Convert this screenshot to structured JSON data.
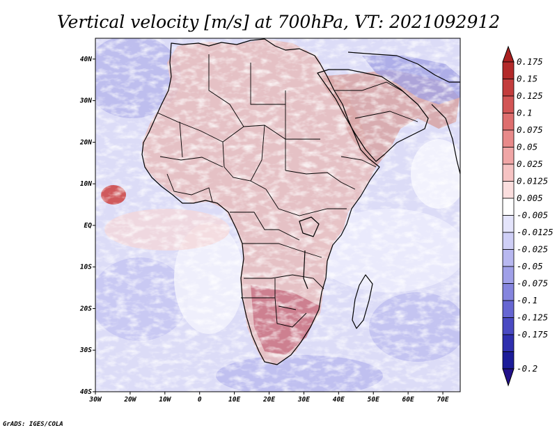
{
  "map": {
    "title": "Vertical velocity [m/s] at 700hPa, VT: 2021092912",
    "credit": "GrADS: IGES/COLA",
    "extent": {
      "lon_min": -30,
      "lon_max": 75,
      "lat_min": -40,
      "lat_max": 45
    },
    "lat_ticks": [
      {
        "lat": 40,
        "label": "40N"
      },
      {
        "lat": 30,
        "label": "30N"
      },
      {
        "lat": 20,
        "label": "20N"
      },
      {
        "lat": 10,
        "label": "10N"
      },
      {
        "lat": 0,
        "label": "EQ"
      },
      {
        "lat": -10,
        "label": "10S"
      },
      {
        "lat": -20,
        "label": "20S"
      },
      {
        "lat": -30,
        "label": "30S"
      },
      {
        "lat": -40,
        "label": "40S"
      }
    ],
    "lon_ticks": [
      {
        "lon": -30,
        "label": "30W"
      },
      {
        "lon": -20,
        "label": "20W"
      },
      {
        "lon": -10,
        "label": "10W"
      },
      {
        "lon": 0,
        "label": "0"
      },
      {
        "lon": 10,
        "label": "10E"
      },
      {
        "lon": 20,
        "label": "20E"
      },
      {
        "lon": 30,
        "label": "30E"
      },
      {
        "lon": 40,
        "label": "40E"
      },
      {
        "lon": 50,
        "label": "50E"
      },
      {
        "lon": 60,
        "label": "60E"
      },
      {
        "lon": 70,
        "label": "70E"
      }
    ]
  },
  "colorbar": {
    "labels": [
      "0.175",
      "0.15",
      "0.125",
      "0.1",
      "0.075",
      "0.05",
      "0.025",
      "0.0125",
      "0.005",
      "-0.005",
      "-0.0125",
      "-0.025",
      "-0.05",
      "-0.075",
      "-0.1",
      "-0.125",
      "-0.175",
      "-0.2"
    ],
    "colors": [
      "#b32a2a",
      "#c33d3d",
      "#d25555",
      "#de6e6e",
      "#e88a8a",
      "#f0a6a6",
      "#f6c3c3",
      "#fbdede",
      "#ffffff",
      "#e4e4fb",
      "#cfcff6",
      "#b8b8f0",
      "#a0a0e8",
      "#8585de",
      "#6666d2",
      "#4a4ac2",
      "#2f2fae",
      "#1c1c99"
    ],
    "top_arrow_color": "#aa2020",
    "bottom_arrow_color": "#22118a"
  }
}
